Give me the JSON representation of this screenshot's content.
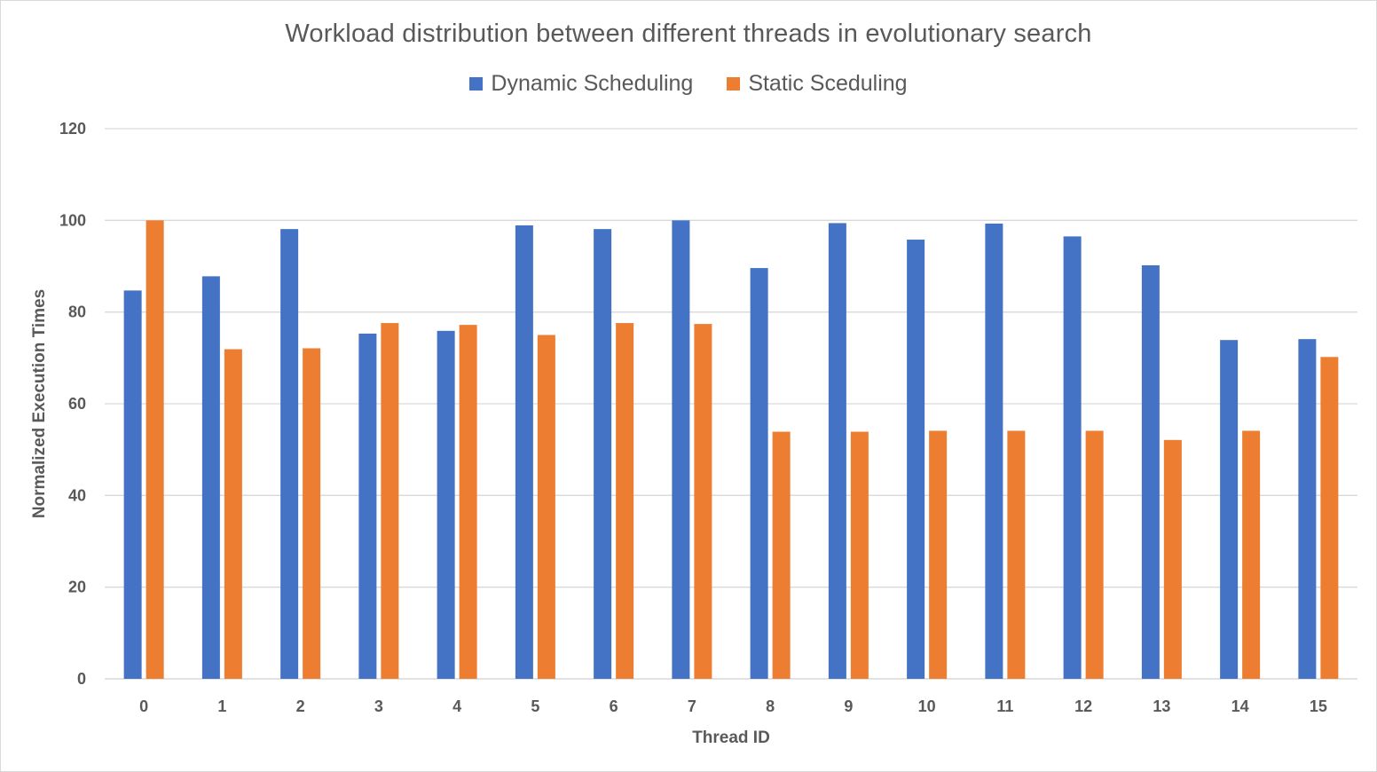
{
  "chart_data": {
    "type": "bar",
    "title": "Workload distribution between different threads in evolutionary search",
    "xlabel": "Thread ID",
    "ylabel": "Normalized Execution Times",
    "categories": [
      "0",
      "1",
      "2",
      "3",
      "4",
      "5",
      "6",
      "7",
      "8",
      "9",
      "10",
      "11",
      "12",
      "13",
      "14",
      "15"
    ],
    "series": [
      {
        "name": "Dynamic Scheduling",
        "color": "#4472c4",
        "values": [
          84.7,
          87.8,
          98.1,
          75.3,
          75.9,
          98.9,
          98.1,
          100,
          89.6,
          99.4,
          95.8,
          99.3,
          96.5,
          90.2,
          73.9,
          74.1
        ]
      },
      {
        "name": "Static Sceduling",
        "color": "#ed7d31",
        "values": [
          100,
          71.9,
          72.1,
          77.6,
          77.2,
          75.0,
          77.6,
          77.4,
          53.9,
          53.9,
          54.1,
          54.1,
          54.1,
          52.1,
          54.1,
          70.2
        ]
      }
    ],
    "ylim": [
      0,
      120
    ],
    "yticks": [
      0,
      20,
      40,
      60,
      80,
      100,
      120
    ],
    "grid": true,
    "legend_position": "top"
  }
}
